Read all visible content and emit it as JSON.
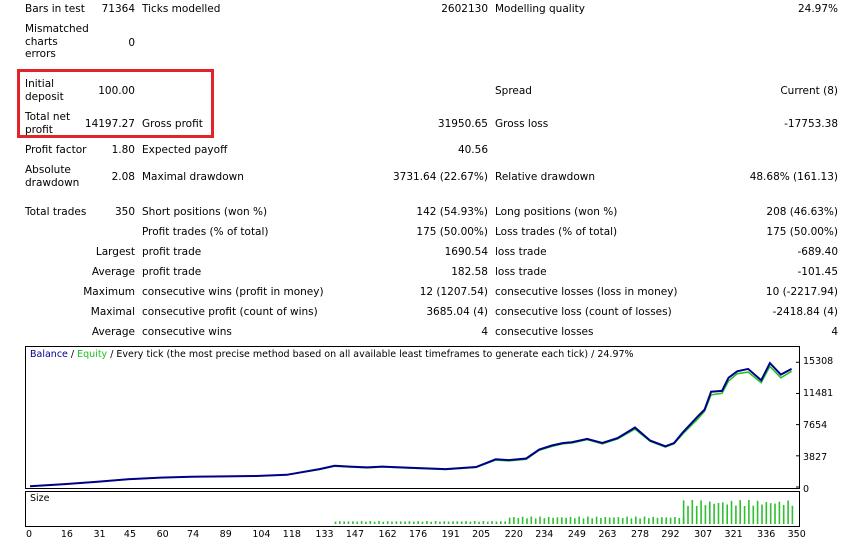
{
  "report": {
    "bars_in_test_label": "Bars in test",
    "bars_in_test_value": "71364",
    "ticks_modelled_label": "Ticks modelled",
    "ticks_modelled_value": "2602130",
    "modelling_quality_label": "Modelling quality",
    "modelling_quality_value": "24.97%",
    "mismatched_label": "Mismatched charts errors",
    "mismatched_value": "0",
    "initial_deposit_label": "Initial deposit",
    "initial_deposit_value": "100.00",
    "spread_label": "Spread",
    "spread_value": "Current (8)",
    "total_net_profit_label": "Total net profit",
    "total_net_profit_value": "14197.27",
    "gross_profit_label": "Gross profit",
    "gross_profit_value": "31950.65",
    "gross_loss_label": "Gross loss",
    "gross_loss_value": "-17753.38",
    "profit_factor_label": "Profit factor",
    "profit_factor_value": "1.80",
    "expected_payoff_label": "Expected payoff",
    "expected_payoff_value": "40.56",
    "absolute_drawdown_label": "Absolute drawdown",
    "absolute_drawdown_value": "2.08",
    "maximal_drawdown_label": "Maximal drawdown",
    "maximal_drawdown_value": "3731.64 (22.67%)",
    "relative_drawdown_label": "Relative drawdown",
    "relative_drawdown_value": "48.68% (161.13)",
    "total_trades_label": "Total trades",
    "total_trades_value": "350",
    "short_positions_label": "Short positions (won %)",
    "short_positions_value": "142 (54.93%)",
    "long_positions_label": "Long positions (won %)",
    "long_positions_value": "208 (46.63%)",
    "profit_trades_label": "Profit trades (% of total)",
    "profit_trades_value": "175 (50.00%)",
    "loss_trades_label": "Loss trades (% of total)",
    "loss_trades_value": "175 (50.00%)",
    "largest_label": "Largest",
    "largest_profit_label": "profit trade",
    "largest_profit_value": "1690.54",
    "largest_loss_label": "loss trade",
    "largest_loss_value": "-689.40",
    "average_label": "Average",
    "average_profit_label": "profit trade",
    "average_profit_value": "182.58",
    "average_loss_label": "loss trade",
    "average_loss_value": "-101.45",
    "maximum_label": "Maximum",
    "max_consec_wins_label": "consecutive wins (profit in money)",
    "max_consec_wins_value": "12 (1207.54)",
    "max_consec_losses_label": "consecutive losses (loss in money)",
    "max_consec_losses_value": "10 (-2217.94)",
    "maximal_label": "Maximal",
    "maximal_consec_profit_label": "consecutive profit (count of wins)",
    "maximal_consec_profit_value": "3685.04 (4)",
    "maximal_consec_loss_label": "consecutive loss (count of losses)",
    "maximal_consec_loss_value": "-2418.84 (4)",
    "average2_label": "Average",
    "avg_consec_wins_label": "consecutive wins",
    "avg_consec_wins_value": "4",
    "avg_consec_losses_label": "consecutive losses",
    "avg_consec_losses_value": "4"
  },
  "chart": {
    "legend_balance": "Balance",
    "legend_sep": " / ",
    "legend_equity": "Equity",
    "legend_rest": " / Every tick (the most precise method based on all available least timeframes to generate each tick) / 24.97%",
    "size_title": "Size",
    "balance_color": "#00008b",
    "equity_color": "#20c020",
    "size_color": "#2fbf2f"
  },
  "chart_data": {
    "type": "line",
    "y_ticks": [
      "15308",
      "11481",
      "7654",
      "3827",
      "0"
    ],
    "x_ticks": [
      "0",
      "16",
      "31",
      "45",
      "60",
      "74",
      "89",
      "104",
      "118",
      "133",
      "147",
      "162",
      "176",
      "191",
      "205",
      "220",
      "234",
      "249",
      "263",
      "278",
      "292",
      "307",
      "321",
      "336",
      "350"
    ],
    "xlim": [
      0,
      352
    ],
    "ylim": [
      0,
      16200
    ],
    "series": [
      {
        "name": "Balance",
        "x": [
          0,
          16,
          31,
          45,
          60,
          74,
          89,
          104,
          118,
          133,
          140,
          147,
          155,
          162,
          176,
          191,
          205,
          214,
          220,
          228,
          234,
          240,
          245,
          249,
          256,
          263,
          270,
          278,
          285,
          292,
          296,
          300,
          307,
          310,
          313,
          318,
          321,
          325,
          330,
          336,
          340,
          345,
          350
        ],
        "y": [
          100,
          350,
          650,
          950,
          1150,
          1250,
          1300,
          1350,
          1500,
          2200,
          2600,
          2500,
          2400,
          2500,
          2350,
          2200,
          2450,
          3400,
          3300,
          3500,
          4600,
          5100,
          5400,
          5500,
          5900,
          5400,
          6000,
          7300,
          5700,
          5000,
          5400,
          6700,
          8700,
          9500,
          11700,
          11800,
          13400,
          14200,
          14500,
          13100,
          15200,
          13800,
          14500
        ]
      },
      {
        "name": "Equity",
        "x": [
          0,
          16,
          31,
          45,
          60,
          74,
          89,
          104,
          118,
          133,
          140,
          147,
          155,
          162,
          176,
          191,
          205,
          214,
          220,
          228,
          234,
          240,
          245,
          249,
          256,
          263,
          270,
          278,
          285,
          292,
          296,
          300,
          307,
          310,
          313,
          318,
          321,
          325,
          330,
          336,
          340,
          345,
          350
        ],
        "y": [
          100,
          350,
          650,
          950,
          1150,
          1250,
          1300,
          1350,
          1500,
          2150,
          2550,
          2450,
          2350,
          2450,
          2300,
          2150,
          2400,
          3300,
          3200,
          3400,
          4500,
          5000,
          5300,
          5400,
          5800,
          5300,
          5900,
          7100,
          5600,
          4900,
          5300,
          6500,
          8400,
          9300,
          11300,
          11500,
          13000,
          13900,
          14100,
          12800,
          14800,
          13400,
          14200
        ]
      }
    ],
    "size_bars": [
      {
        "from": 140,
        "to": 220,
        "level": 0.1
      },
      {
        "from": 220,
        "to": 300,
        "level": 0.25
      },
      {
        "from": 300,
        "to": 350,
        "level": 0.8
      }
    ]
  }
}
